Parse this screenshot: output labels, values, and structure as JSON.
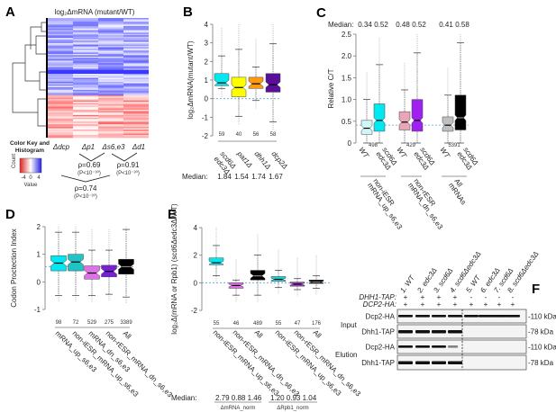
{
  "panels": {
    "A": {
      "label": "A",
      "title": "log₂ΔmRNA (mutant/WT)",
      "columns": [
        "Δdcp",
        "Δp1",
        "Δs6,e3",
        "Δd1"
      ],
      "color_key": {
        "title": "Color Key and Histogram",
        "ticks": [
          "-4",
          "0",
          "4"
        ],
        "xlabel": "Value",
        "ylabel": "Count",
        "colors": {
          "low": "#e02020",
          "mid": "#ffffff",
          "high": "#2020e0"
        }
      },
      "correlations": [
        {
          "rho": "ρ=0.69",
          "p": "(P<10⁻³⁰)"
        },
        {
          "rho": "ρ=0.91",
          "p": "(P<10⁻³⁰)"
        },
        {
          "rho": "ρ=0.74",
          "p": "(P<10⁻³⁰)"
        }
      ]
    },
    "B": {
      "label": "B",
      "median_label": "Median:",
      "medians": [
        "1.84",
        "1.54",
        "1.74",
        "1.67"
      ],
      "xlabels": [
        [
          "scd6Δ",
          "edc3Δ"
        ],
        [
          "pat1Δ"
        ],
        [
          "dhh1Δ"
        ],
        [
          "dcp2Δ"
        ]
      ]
    },
    "C": {
      "label": "C",
      "median_label": "Median:",
      "medians": [
        "0.34",
        "0.52",
        "0.48",
        "0.52",
        "0.41",
        "0.58"
      ],
      "xlabels": [
        "WT",
        "scd6Δ edc3Δ",
        "WT",
        "scd6Δ edc3Δ",
        "WT",
        "scd6Δ edc3Δ"
      ],
      "groups": [
        "non-iESR mRNA_up_s6,e3",
        "non-rESR mRNA_dn_s6,e3",
        "All mRNAs"
      ]
    },
    "D": {
      "label": "D",
      "xlabels": [
        "mRNA_up_s6,e3",
        "non-iESR_mRNA_up_s6,e3",
        "mRNA_dn_s6,e3",
        "non-rESR_mRNA_dn_s6,e3",
        "All"
      ]
    },
    "E": {
      "label": "E",
      "xlabels": [
        "non-iESR_mRNA_up_s6,e3",
        "non-rESR_mRNA_dn_s6,e3",
        "All",
        "non-iESR_mRNA_up_s6,e3",
        "non-rESR_mRNA_dn_s6,e3",
        "All"
      ],
      "median_label": "Median:",
      "medians_mrna": "2.79  0.88  1.46",
      "medians_rpb1": "1.20  0.93  1.04",
      "group_mrna": "ΔmRNA_norm",
      "group_rpb1": "ΔRpb1_norm"
    },
    "F": {
      "label": "F",
      "lanes": [
        "1. WT",
        "2. edc3Δ",
        "3. scd6Δ",
        "4. scd6Δedc3Δ",
        "5. WT",
        "6. edc3Δ",
        "7. scd6Δ",
        "8. scd6Δedc3Δ"
      ],
      "row_dhh1": {
        "label": "DHH1-TAP:",
        "values": [
          "+",
          "+",
          "+",
          "+",
          "-",
          "-",
          "-",
          "-"
        ]
      },
      "row_dcp2": {
        "label": "DCP2-HA:",
        "values": [
          "+",
          "+",
          "+",
          "+",
          "+",
          "+",
          "+",
          "+"
        ]
      },
      "sections": [
        "Input",
        "Elution"
      ],
      "blots": [
        {
          "name": "Dcp2-HA",
          "size": "-110 kDa",
          "bands": [
            1,
            1,
            1,
            1,
            1,
            1,
            1,
            1
          ]
        },
        {
          "name": "Dhh1-TAP",
          "size": "-78 kDa",
          "bands": [
            1,
            1,
            1,
            1,
            0,
            0,
            0,
            0
          ]
        },
        {
          "name": "Dcp2-HA",
          "size": "-110 kDa",
          "bands": [
            1,
            1,
            1,
            0.4,
            0,
            0,
            0,
            0
          ]
        },
        {
          "name": "Dhh1-TAP",
          "size": "-78 kDa",
          "bands": [
            1,
            1,
            1,
            1,
            0,
            0,
            0,
            0
          ]
        }
      ]
    }
  },
  "chart_data": [
    {
      "panel": "B",
      "type": "box",
      "ylabel": "log₂ΔmRNA(mutant/WT)",
      "ylim": [
        -2,
        4
      ],
      "yticks": [
        "-2",
        "-1",
        "0",
        "1",
        "2",
        "3",
        "4"
      ],
      "reference_line": 0,
      "boxes": [
        {
          "q1": 0.7,
          "median": 0.85,
          "q3": 1.35,
          "lo": 0.55,
          "hi": 2.3,
          "color": "#00e8f0",
          "n": "59"
        },
        {
          "q1": 0.1,
          "median": 0.6,
          "q3": 1.15,
          "lo": -0.95,
          "hi": 2.65,
          "color": "#ffff00",
          "n": "40"
        },
        {
          "q1": 0.55,
          "median": 0.8,
          "q3": 1.15,
          "lo": -0.1,
          "hi": 1.7,
          "color": "#ff9a10",
          "n": "56"
        },
        {
          "q1": 0.35,
          "median": 0.75,
          "q3": 1.35,
          "lo": -1.25,
          "hi": 2.95,
          "color": "#5a0f9a",
          "n": "58"
        }
      ]
    },
    {
      "panel": "C",
      "type": "box",
      "ylabel": "Relative C/T",
      "ylim": [
        0,
        2.5
      ],
      "yticks": [
        "0",
        "0.5",
        "1.0",
        "1.5",
        "2.0",
        "2.5"
      ],
      "reference_line": 0.41,
      "counts": [
        "498",
        "429",
        "5391"
      ],
      "boxes": [
        {
          "q1": 0.2,
          "median": 0.34,
          "q3": 0.52,
          "lo": 0,
          "hi": 1.0,
          "color": "#d0f6f6"
        },
        {
          "q1": 0.27,
          "median": 0.52,
          "q3": 0.9,
          "lo": 0,
          "hi": 1.8,
          "color": "#00e8f0"
        },
        {
          "q1": 0.3,
          "median": 0.48,
          "q3": 0.72,
          "lo": 0,
          "hi": 1.22,
          "color": "#eaa6b6"
        },
        {
          "q1": 0.27,
          "median": 0.52,
          "q3": 1.0,
          "lo": 0,
          "hi": 2.07,
          "color": "#a020f0"
        },
        {
          "q1": 0.27,
          "median": 0.41,
          "q3": 0.6,
          "lo": 0,
          "hi": 1.1,
          "color": "#c0c0c0"
        },
        {
          "q1": 0.3,
          "median": 0.58,
          "q3": 1.1,
          "lo": 0,
          "hi": 2.3,
          "color": "#000000"
        }
      ]
    },
    {
      "panel": "D",
      "type": "box",
      "ylabel": "Codon Proctection Index",
      "ylim": [
        -1,
        2
      ],
      "yticks": [
        "-1",
        "0",
        "1",
        "2"
      ],
      "reference_line": 0.55,
      "boxes": [
        {
          "q1": 0.4,
          "median": 0.68,
          "q3": 0.95,
          "lo": -0.5,
          "hi": 1.8,
          "color": "#00e8f0",
          "n": "98"
        },
        {
          "q1": 0.4,
          "median": 0.72,
          "q3": 1.0,
          "lo": -0.5,
          "hi": 1.8,
          "color": "#20c4c4",
          "n": "72"
        },
        {
          "q1": 0.1,
          "median": 0.32,
          "q3": 0.58,
          "lo": -0.5,
          "hi": 1.15,
          "color": "#e070e8",
          "n": "529"
        },
        {
          "q1": 0.18,
          "median": 0.38,
          "q3": 0.6,
          "lo": -0.45,
          "hi": 1.15,
          "color": "#7a1fd8",
          "n": "275"
        },
        {
          "q1": 0.28,
          "median": 0.55,
          "q3": 0.82,
          "lo": -0.55,
          "hi": 1.9,
          "color": "#000000",
          "n": "3389"
        }
      ]
    },
    {
      "panel": "E",
      "type": "box",
      "ylabel": "log₂Δ(mRNA or Rpb1) (scd6Δedc3Δ/WT)",
      "ylim": [
        -2,
        4
      ],
      "yticks": [
        "-2",
        "0",
        "2",
        "4"
      ],
      "reference_line": 0,
      "boxes": [
        {
          "q1": 1.3,
          "median": 1.45,
          "q3": 1.8,
          "lo": 0.5,
          "hi": 2.7,
          "color": "#00e8f0",
          "n": "55"
        },
        {
          "q1": -0.4,
          "median": -0.2,
          "q3": 0.0,
          "lo": -0.9,
          "hi": 0.2,
          "color": "#e070e8",
          "n": "46"
        },
        {
          "q1": 0.2,
          "median": 0.5,
          "q3": 0.9,
          "lo": -0.9,
          "hi": 2.0,
          "color": "#000000",
          "n": "489"
        },
        {
          "q1": 0.1,
          "median": 0.25,
          "q3": 0.45,
          "lo": -0.35,
          "hi": 0.9,
          "color": "#20d4d8",
          "n": "55"
        },
        {
          "q1": -0.25,
          "median": -0.1,
          "q3": 0.05,
          "lo": -0.5,
          "hi": 0.3,
          "color": "#a040c0",
          "n": "47"
        },
        {
          "q1": -0.05,
          "median": 0.05,
          "q3": 0.2,
          "lo": -0.4,
          "hi": 0.5,
          "color": "#000000",
          "n": "176"
        }
      ]
    }
  ]
}
